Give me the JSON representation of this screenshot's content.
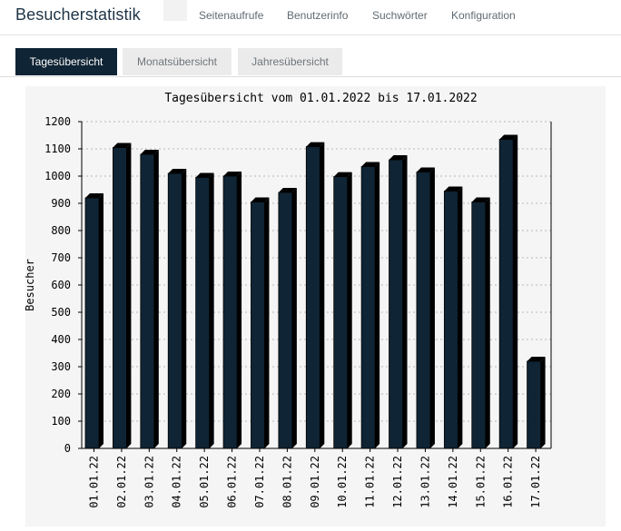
{
  "header": {
    "title": "Besucherstatistik",
    "nav": [
      "Seitenaufrufe",
      "Benutzerinfo",
      "Suchwörter",
      "Konfiguration"
    ]
  },
  "tabs": [
    {
      "label": "Tagesübersicht",
      "active": true
    },
    {
      "label": "Monatsübersicht",
      "active": false
    },
    {
      "label": "Jahresübersicht",
      "active": false
    }
  ],
  "chart_data": {
    "type": "bar",
    "title": "Tagesübersicht vom 01.01.2022 bis 17.01.2022",
    "ylabel": "Besucher",
    "xlabel": "",
    "ylim": [
      0,
      1200
    ],
    "yticks": [
      0,
      100,
      200,
      300,
      400,
      500,
      600,
      700,
      800,
      900,
      1000,
      1100,
      1200
    ],
    "grid": true,
    "bar_color": "#0f2434",
    "categories": [
      "01.01.22",
      "02.01.22",
      "03.01.22",
      "04.01.22",
      "05.01.22",
      "06.01.22",
      "07.01.22",
      "08.01.22",
      "09.01.22",
      "10.01.22",
      "11.01.22",
      "12.01.22",
      "13.01.22",
      "14.01.22",
      "15.01.22",
      "16.01.22",
      "17.01.22"
    ],
    "values": [
      920,
      1105,
      1080,
      1010,
      995,
      1000,
      905,
      940,
      1108,
      998,
      1035,
      1060,
      1015,
      945,
      905,
      1135,
      320
    ]
  }
}
